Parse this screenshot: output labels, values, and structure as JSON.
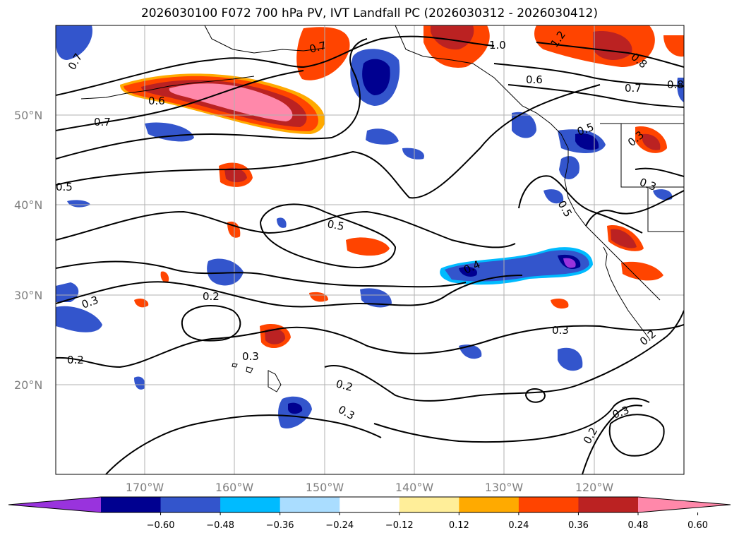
{
  "title": "2026030100 F072 700 hPa PV, IVT Landfall PC (2026030312 - 2026030412)",
  "lat_labels": [
    "50°N",
    "40°N",
    "30°N",
    "20°N"
  ],
  "lon_labels": [
    "170°W",
    "160°W",
    "150°W",
    "140°W",
    "130°W",
    "120°W"
  ],
  "contour_labels": [
    "0.7",
    "0.7",
    "1.0",
    "1.2",
    "0.8",
    "0.6",
    "0.6",
    "0.7",
    "0.8",
    "0.7",
    "0.5",
    "0.5",
    "0.3",
    "0.3",
    "0.5",
    "0.5",
    "0.4",
    "0.3",
    "0.2",
    "0.3",
    "0.3",
    "0.2",
    "0.2",
    "0.3",
    "0.2",
    "0.3",
    "0.2"
  ],
  "colorbar": {
    "ticks": [
      "−0.60",
      "−0.48",
      "−0.36",
      "−0.24",
      "−0.12",
      "0.12",
      "0.24",
      "0.36",
      "0.48",
      "0.60"
    ],
    "colors": [
      "#9933dd",
      "#000090",
      "#3355cc",
      "#00bbff",
      "#aaddff",
      "#ffffff",
      "#ffee99",
      "#ffaa00",
      "#ff4400",
      "#bb2222",
      "#ff88aa"
    ]
  },
  "colors": {
    "contour": "#000000",
    "grid": "#b0b0b0",
    "coast": "#000000"
  }
}
